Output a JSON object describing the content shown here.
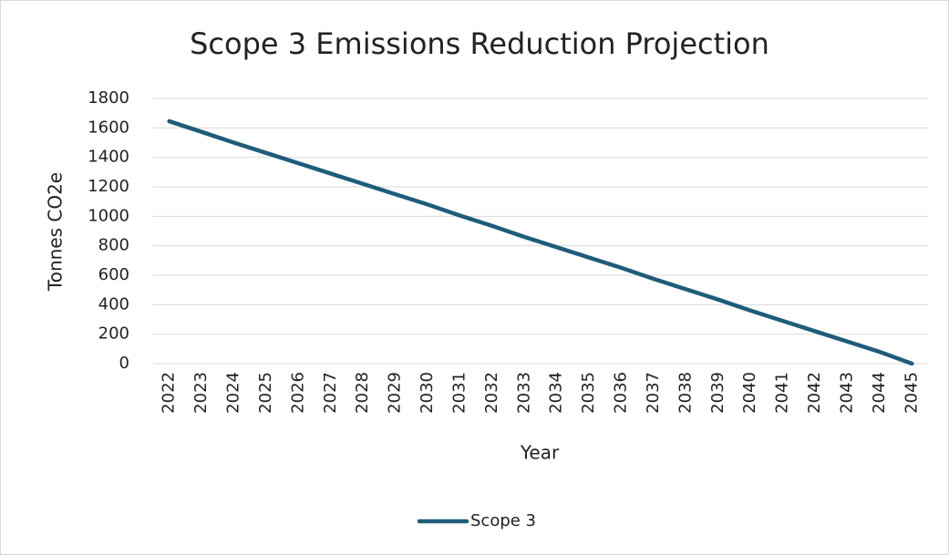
{
  "chart_data": {
    "type": "line",
    "title": "Scope 3 Emissions Reduction Projection",
    "x_label": "Year",
    "y_label": "Tonnes CO2e",
    "categories": [
      "2022",
      "2023",
      "2024",
      "2025",
      "2026",
      "2027",
      "2028",
      "2029",
      "2030",
      "2031",
      "2032",
      "2033",
      "2034",
      "2035",
      "2036",
      "2037",
      "2038",
      "2039",
      "2040",
      "2041",
      "2042",
      "2043",
      "2044",
      "2045"
    ],
    "series": [
      {
        "name": "Scope 3",
        "color": "#1f5c7a",
        "values": [
          1645,
          1573,
          1500,
          1430,
          1360,
          1290,
          1220,
          1150,
          1080,
          1005,
          935,
          860,
          790,
          720,
          650,
          575,
          505,
          435,
          360,
          290,
          220,
          150,
          80,
          0
        ]
      }
    ],
    "ylim": [
      0,
      1800
    ],
    "yticks": [
      0,
      200,
      400,
      600,
      800,
      1000,
      1200,
      1400,
      1600,
      1800
    ],
    "grid": true,
    "legend": "bottom"
  }
}
